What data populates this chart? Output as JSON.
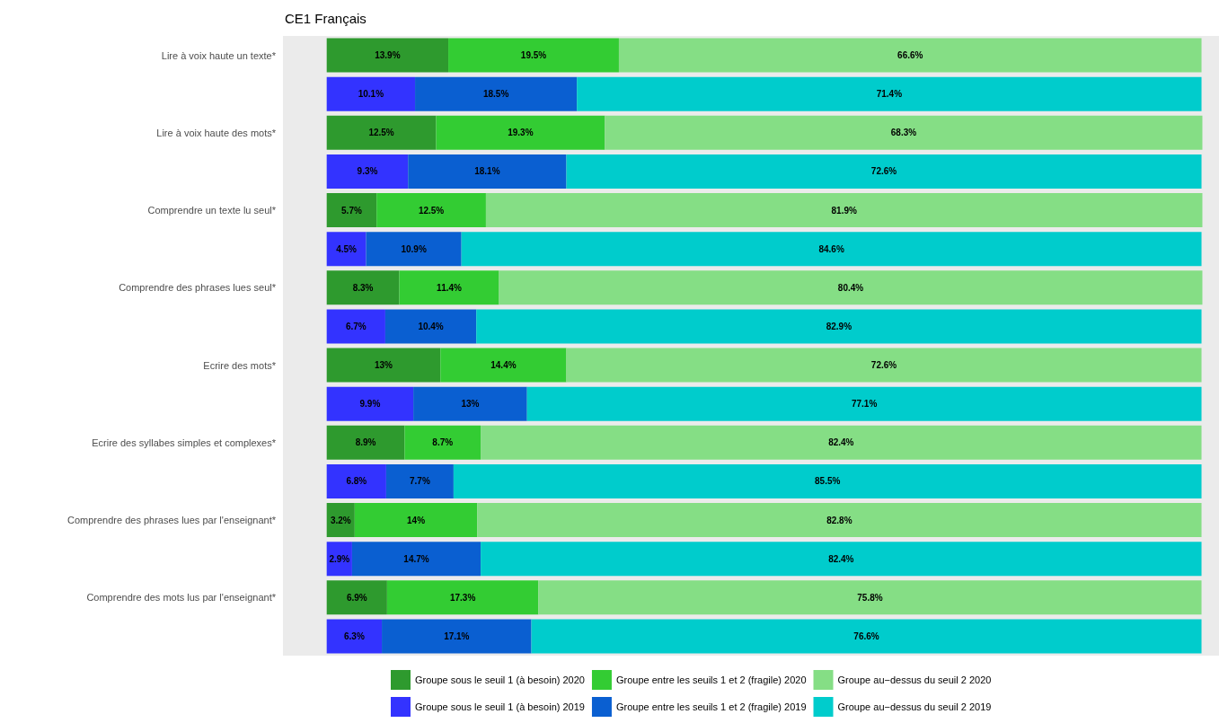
{
  "chart_data": {
    "type": "bar",
    "orientation": "horizontal",
    "stacked": true,
    "title": "CE1 Français",
    "categories": [
      "Lire à voix haute un texte*",
      null,
      "Lire à voix haute des mots*",
      null,
      "Comprendre un texte lu seul*",
      null,
      "Comprendre des phrases lues seul*",
      null,
      "Ecrire des mots*",
      null,
      "Ecrire des syllabes simples et complexes*",
      null,
      "Comprendre des phrases lues par l'enseignant*",
      null,
      "Comprendre des mots lus par l'enseignant*",
      null
    ],
    "series": [
      {
        "name": "Groupe sous le seuil 1 (à besoin) 2020",
        "color": "#2e9a2e",
        "values": [
          13.9,
          null,
          12.5,
          null,
          5.7,
          null,
          8.3,
          null,
          13,
          null,
          8.9,
          null,
          3.2,
          null,
          6.9,
          null
        ],
        "value_labels": [
          "13.9%",
          null,
          "12.5%",
          null,
          "5.7%",
          null,
          "8.3%",
          null,
          "13%",
          null,
          "8.9%",
          null,
          "3.2%",
          null,
          "6.9%",
          null
        ]
      },
      {
        "name": "Groupe entre les seuils 1 et 2 (fragile) 2020",
        "color": "#33cc33",
        "values": [
          19.5,
          null,
          19.3,
          null,
          12.5,
          null,
          11.4,
          null,
          14.4,
          null,
          8.7,
          null,
          14,
          null,
          17.3,
          null
        ],
        "value_labels": [
          "19.5%",
          null,
          "19.3%",
          null,
          "12.5%",
          null,
          "11.4%",
          null,
          "14.4%",
          null,
          "8.7%",
          null,
          "14%",
          null,
          "17.3%",
          null
        ]
      },
      {
        "name": "Groupe au−dessus du seuil 2 2020",
        "color": "#85de85",
        "values": [
          66.6,
          null,
          68.3,
          null,
          81.9,
          null,
          80.4,
          null,
          72.6,
          null,
          82.4,
          null,
          82.8,
          null,
          75.8,
          null
        ],
        "value_labels": [
          "66.6%",
          null,
          "68.3%",
          null,
          "81.9%",
          null,
          "80.4%",
          null,
          "72.6%",
          null,
          "82.4%",
          null,
          "82.8%",
          null,
          "75.8%",
          null
        ]
      },
      {
        "name": "Groupe sous le seuil 1 (à besoin) 2019",
        "color": "#3333ff",
        "values": [
          null,
          10.1,
          null,
          9.3,
          null,
          4.5,
          null,
          6.7,
          null,
          9.9,
          null,
          6.8,
          null,
          2.9,
          null,
          6.3
        ],
        "value_labels": [
          null,
          "10.1%",
          null,
          "9.3%",
          null,
          "4.5%",
          null,
          "6.7%",
          null,
          "9.9%",
          null,
          "6.8%",
          null,
          "2.9%",
          null,
          "6.3%"
        ]
      },
      {
        "name": "Groupe entre les seuils 1 et 2 (fragile) 2019",
        "color": "#0a5fd1",
        "values": [
          null,
          18.5,
          null,
          18.1,
          null,
          10.9,
          null,
          10.4,
          null,
          13,
          null,
          7.7,
          null,
          14.7,
          null,
          17.1
        ],
        "value_labels": [
          null,
          "18.5%",
          null,
          "18.1%",
          null,
          "10.9%",
          null,
          "10.4%",
          null,
          "13%",
          null,
          "7.7%",
          null,
          "14.7%",
          null,
          "17.1%"
        ]
      },
      {
        "name": "Groupe au−dessus du seuil 2 2019",
        "color": "#00cccc",
        "values": [
          null,
          71.4,
          null,
          72.6,
          null,
          84.6,
          null,
          82.9,
          null,
          77.1,
          null,
          85.5,
          null,
          82.4,
          null,
          76.6
        ],
        "value_labels": [
          null,
          "71.4%",
          null,
          "72.6%",
          null,
          "84.6%",
          null,
          "82.9%",
          null,
          "77.1%",
          null,
          "85.5%",
          null,
          "82.4%",
          null,
          "76.6%"
        ]
      }
    ],
    "xlim": [
      -5,
      102
    ],
    "tick_labels": "y",
    "legend": "bottom"
  }
}
